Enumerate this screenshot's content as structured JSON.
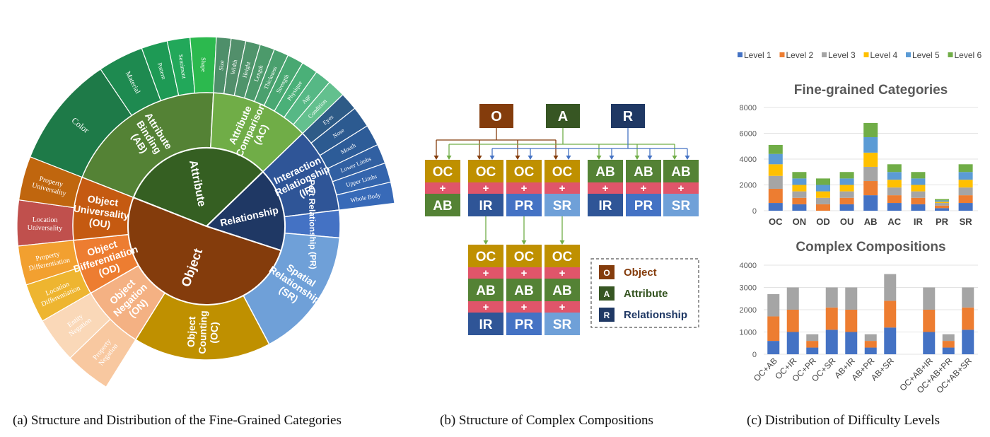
{
  "captions": {
    "a": "(a) Structure and Distribution of the Fine-Grained Categories",
    "b": "(b) Structure of Complex Compositions",
    "c": "(c) Distribution of Difficulty Levels"
  },
  "sunburst": {
    "inner": [
      {
        "key": "attr",
        "label": "Attribute",
        "color": "#355f22",
        "start": -68.5,
        "end": 46
      },
      {
        "key": "rel",
        "label": "Relationship",
        "color": "#1f3864",
        "start": 46,
        "end": 108
      },
      {
        "key": "obj",
        "label": "Object",
        "color": "#843c0c",
        "start": 108,
        "end": 291.5
      }
    ],
    "middle": [
      {
        "key": "ab",
        "lines": [
          "Attribute",
          "Binding",
          "(AB)"
        ],
        "color": "#548235",
        "start": -68.5,
        "end": 3
      },
      {
        "key": "ac",
        "lines": [
          "Attribute",
          "Comparison",
          "(AC)"
        ],
        "color": "#70ad47",
        "start": 3,
        "end": 46
      },
      {
        "key": "ir",
        "lines": [
          "Interaction",
          "Relationship",
          "(IR)"
        ],
        "color": "#2f5597",
        "start": 46,
        "end": 83
      },
      {
        "key": "pr",
        "lines": [
          "Part Relationship (PR)"
        ],
        "color": "#4472c4",
        "start": 83,
        "end": 95
      },
      {
        "key": "sr",
        "lines": [
          "Spatial",
          "Relationship",
          "(SR)"
        ],
        "color": "#6fa0d8",
        "start": 95,
        "end": 152
      },
      {
        "key": "oc",
        "lines": [
          "Object",
          "Counting",
          "(OC)"
        ],
        "color": "#bf9000",
        "start": 152,
        "end": 212
      },
      {
        "key": "on",
        "lines": [
          "Object",
          "Negation",
          "(ON)"
        ],
        "color": "#f4b183",
        "start": 212,
        "end": 240
      },
      {
        "key": "od",
        "lines": [
          "Object",
          "Differentiation",
          "(OD)"
        ],
        "color": "#ed7d31",
        "start": 240,
        "end": 264
      },
      {
        "key": "ou",
        "lines": [
          "Object",
          "Universality",
          "(OU)"
        ],
        "color": "#c55a11",
        "start": 264,
        "end": 291.5
      }
    ],
    "outer": [
      {
        "lines": [
          "Color"
        ],
        "color": "#1e7a48",
        "start": -68.5,
        "end": -34
      },
      {
        "lines": [
          "Material"
        ],
        "color": "#1e8a50",
        "start": -34,
        "end": -20
      },
      {
        "lines": [
          "Pattern"
        ],
        "color": "#1e9a55",
        "start": -20,
        "end": -12
      },
      {
        "lines": [
          "Sentiment"
        ],
        "color": "#22a85a",
        "start": -12,
        "end": -5
      },
      {
        "lines": [
          "Shape"
        ],
        "color": "#2cb94e",
        "start": -5,
        "end": 3
      },
      {
        "lines": [
          "Size"
        ],
        "color": "#4e8f6a",
        "start": 3,
        "end": 7.5
      },
      {
        "lines": [
          "Width"
        ],
        "color": "#528f6b",
        "start": 7.5,
        "end": 12
      },
      {
        "lines": [
          "Height"
        ],
        "color": "#4f946b",
        "start": 12,
        "end": 16.5
      },
      {
        "lines": [
          "Length"
        ],
        "color": "#4c9a6b",
        "start": 16.5,
        "end": 21
      },
      {
        "lines": [
          "Thickness"
        ],
        "color": "#4aa06e",
        "start": 21,
        "end": 25.5
      },
      {
        "lines": [
          "Strength"
        ],
        "color": "#49a872",
        "start": 25.5,
        "end": 30.5
      },
      {
        "lines": [
          "Physique"
        ],
        "color": "#4ab078",
        "start": 30.5,
        "end": 35.5
      },
      {
        "lines": [
          "Age"
        ],
        "color": "#56b885",
        "start": 35.5,
        "end": 40.5
      },
      {
        "lines": [
          "Condition"
        ],
        "color": "#63c08e",
        "start": 40.5,
        "end": 46
      },
      {
        "lines": [
          "Eyes"
        ],
        "color": "#2e5b87",
        "start": 46,
        "end": 51.5
      },
      {
        "lines": [
          "Nose"
        ],
        "color": "#2c5a90",
        "start": 51.5,
        "end": 58
      },
      {
        "lines": [
          "Mouth"
        ],
        "color": "#2d5c98",
        "start": 58,
        "end": 64.5
      },
      {
        "lines": [
          "Lower Limbs"
        ],
        "color": "#3160a2",
        "start": 64.5,
        "end": 70.5
      },
      {
        "lines": [
          "Upper Limbs"
        ],
        "color": "#3465ad",
        "start": 70.5,
        "end": 76.5
      },
      {
        "lines": [
          "Whole Body"
        ],
        "color": "#386ab8",
        "start": 76.5,
        "end": 83
      },
      {
        "lines": [
          "Location",
          "Universality"
        ],
        "color": "#c0504d",
        "start": 264,
        "end": 278
      },
      {
        "lines": [
          "Property",
          "Universality"
        ],
        "color": "#c0660e",
        "start": 278,
        "end": 291.5
      },
      {
        "lines": [
          "Location",
          "Differentiation"
        ],
        "color": "#eeb530",
        "start": 240,
        "end": 252
      },
      {
        "lines": [
          "Property",
          "Differentiation"
        ],
        "color": "#f2a030",
        "start": 252,
        "end": 264
      },
      {
        "lines": [
          "Property",
          "Negation"
        ],
        "color": "#f8c8a0",
        "start": 212,
        "end": 226
      },
      {
        "lines": [
          "Entity",
          "Negation"
        ],
        "color": "#fad8b8",
        "start": 226,
        "end": 240
      }
    ]
  },
  "compositions": {
    "roots": [
      {
        "letter": "O",
        "color": "#843c0c"
      },
      {
        "letter": "A",
        "color": "#375623"
      },
      {
        "letter": "R",
        "color": "#1f3864"
      }
    ],
    "plus": "+",
    "top_row": [
      {
        "a": "OC",
        "b": "AB"
      },
      {
        "a": "OC",
        "b": "IR"
      },
      {
        "a": "OC",
        "b": "PR"
      },
      {
        "a": "OC",
        "b": "SR"
      },
      {
        "a": "AB",
        "b": "IR"
      },
      {
        "a": "AB",
        "b": "PR"
      },
      {
        "a": "AB",
        "b": "SR"
      }
    ],
    "bottom_row": [
      {
        "a": "OC",
        "b": "AB",
        "c": "IR"
      },
      {
        "a": "OC",
        "b": "AB",
        "c": "PR"
      },
      {
        "a": "OC",
        "b": "AB",
        "c": "SR"
      }
    ],
    "code_colors": {
      "OC": "#bf9000",
      "AB": "#548235",
      "IR": "#2f5597",
      "PR": "#4472c4",
      "SR": "#6fa0d8",
      "plus": "#e0556a"
    },
    "legend": [
      {
        "letter": "O",
        "label": "Object",
        "color": "#843c0c"
      },
      {
        "letter": "A",
        "label": "Attribute",
        "color": "#375623"
      },
      {
        "letter": "R",
        "label": "Relationship",
        "color": "#1f3864"
      }
    ]
  },
  "chart_data": [
    {
      "type": "bar",
      "stacked": true,
      "title": "Fine-grained Categories",
      "categories": [
        "OC",
        "ON",
        "OD",
        "OU",
        "AB",
        "AC",
        "IR",
        "PR",
        "SR"
      ],
      "ylim": [
        0,
        8000
      ],
      "yticks": [
        0,
        2000,
        4000,
        6000,
        8000
      ],
      "legend_position": "top",
      "series": [
        {
          "name": "Level 1",
          "color": "#4472c4",
          "values": [
            600,
            500,
            0,
            500,
            1200,
            600,
            500,
            200,
            600
          ]
        },
        {
          "name": "Level 2",
          "color": "#ed7d31",
          "values": [
            1100,
            500,
            500,
            500,
            1100,
            600,
            500,
            200,
            600
          ]
        },
        {
          "name": "Level 3",
          "color": "#a5a5a5",
          "values": [
            1000,
            500,
            500,
            500,
            1100,
            600,
            500,
            200,
            600
          ]
        },
        {
          "name": "Level 4",
          "color": "#ffc000",
          "values": [
            900,
            500,
            500,
            500,
            1100,
            600,
            500,
            100,
            600
          ]
        },
        {
          "name": "Level 5",
          "color": "#5b9bd5",
          "values": [
            800,
            500,
            500,
            500,
            1200,
            600,
            500,
            100,
            600
          ]
        },
        {
          "name": "Level 6",
          "color": "#70ad47",
          "values": [
            700,
            500,
            500,
            500,
            1100,
            600,
            500,
            100,
            600
          ]
        }
      ]
    },
    {
      "type": "bar",
      "stacked": true,
      "title": "Complex Compositions",
      "categories": [
        "OC+AB",
        "OC+IR",
        "OC+PR",
        "OC+SR",
        "AB+IR",
        "AB+PR",
        "AB+SR",
        "",
        "OC+AB+IR",
        "OC+AB+PR",
        "OC+AB+SR"
      ],
      "ylim": [
        0,
        4000
      ],
      "yticks": [
        0,
        1000,
        2000,
        3000,
        4000
      ],
      "series": [
        {
          "name": "Level 1",
          "color": "#4472c4",
          "values": [
            600,
            1000,
            300,
            1100,
            1000,
            300,
            1200,
            0,
            1000,
            300,
            1100
          ]
        },
        {
          "name": "Level 2",
          "color": "#ed7d31",
          "values": [
            1100,
            1000,
            300,
            1000,
            1000,
            300,
            1200,
            0,
            1000,
            300,
            1000
          ]
        },
        {
          "name": "Level 3",
          "color": "#a5a5a5",
          "values": [
            1000,
            1000,
            300,
            900,
            1000,
            300,
            1200,
            0,
            1000,
            300,
            900
          ]
        }
      ]
    }
  ]
}
